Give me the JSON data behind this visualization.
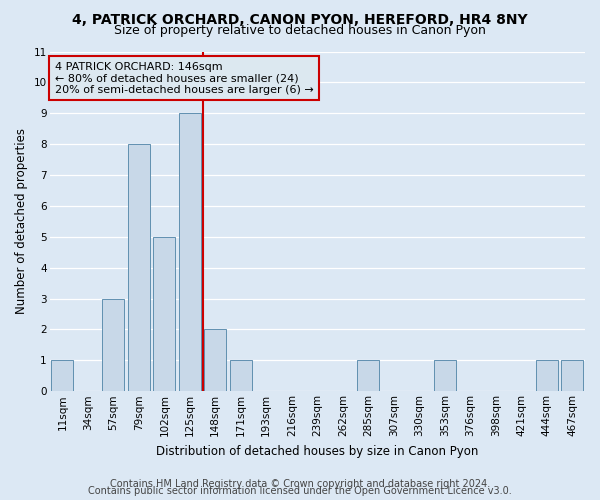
{
  "title1": "4, PATRICK ORCHARD, CANON PYON, HEREFORD, HR4 8NY",
  "title2": "Size of property relative to detached houses in Canon Pyon",
  "xlabel": "Distribution of detached houses by size in Canon Pyon",
  "ylabel": "Number of detached properties",
  "bin_labels": [
    "11sqm",
    "34sqm",
    "57sqm",
    "79sqm",
    "102sqm",
    "125sqm",
    "148sqm",
    "171sqm",
    "193sqm",
    "216sqm",
    "239sqm",
    "262sqm",
    "285sqm",
    "307sqm",
    "330sqm",
    "353sqm",
    "376sqm",
    "398sqm",
    "421sqm",
    "444sqm",
    "467sqm"
  ],
  "bar_values": [
    1,
    0,
    3,
    8,
    5,
    9,
    2,
    1,
    0,
    0,
    0,
    0,
    1,
    0,
    0,
    1,
    0,
    0,
    0,
    1,
    1
  ],
  "bar_color": "#c8d8e8",
  "bar_edge_color": "#6090b0",
  "vline_x_idx": 5,
  "vline_color": "#cc0000",
  "annotation_text": "4 PATRICK ORCHARD: 146sqm\n← 80% of detached houses are smaller (24)\n20% of semi-detached houses are larger (6) →",
  "annotation_box_color": "#cc0000",
  "annotation_box_fill": "#dce8f0",
  "ylim": [
    0,
    11
  ],
  "yticks": [
    0,
    1,
    2,
    3,
    4,
    5,
    6,
    7,
    8,
    9,
    10,
    11
  ],
  "footnote1": "Contains HM Land Registry data © Crown copyright and database right 2024.",
  "footnote2": "Contains public sector information licensed under the Open Government Licence v3.0.",
  "background_color": "#dce8f4",
  "grid_color": "#ffffff",
  "title_fontsize": 10,
  "subtitle_fontsize": 9,
  "axis_label_fontsize": 8.5,
  "tick_fontsize": 7.5,
  "annot_fontsize": 8,
  "footnote_fontsize": 7
}
